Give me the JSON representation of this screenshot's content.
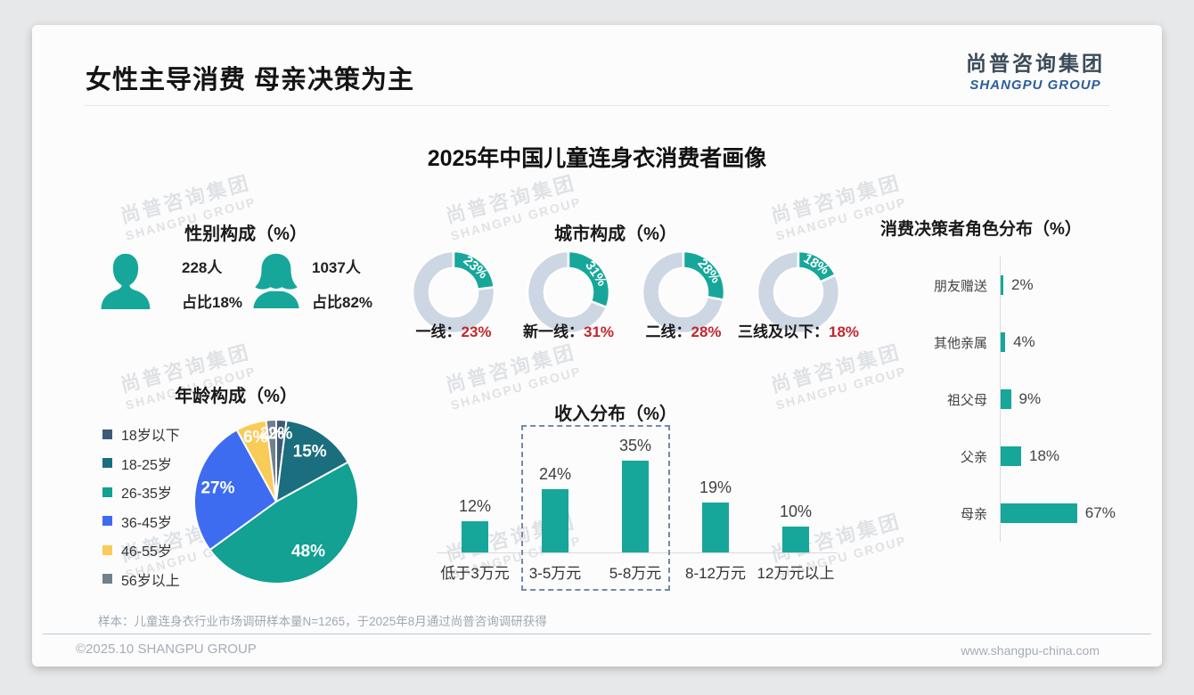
{
  "page": {
    "title": "女性主导消费 母亲决策为主",
    "logo": {
      "cn": "尚普咨询集团",
      "en": "SHANGPU GROUP"
    },
    "main_title": "2025年中国儿童连身衣消费者画像",
    "watermark": {
      "cn": "尚普咨询集团",
      "en": "SHANGPU GROUP"
    },
    "footer": {
      "sample_note": "样本：儿童连身衣行业市场调研样本量N=1265，于2025年8月通过尚普咨询调研获得",
      "copyright": "©2025.10 SHANGPU GROUP",
      "website": "www.shangpu-china.com"
    },
    "colors": {
      "teal": "#16A79A",
      "donut_rest": "#CDD7E4",
      "percent_red": "#C2272D",
      "logo_blue": "#2D5E99",
      "logo_dark": "#3B4B59"
    }
  },
  "chart_data": [
    {
      "type": "pictogram",
      "title": "性别构成（%）",
      "items": [
        {
          "icon": "male-icon",
          "count": "228人",
          "share": "占比18%"
        },
        {
          "icon": "female-icon",
          "count": "1037人",
          "share": "占比82%"
        }
      ]
    },
    {
      "type": "donut",
      "title": "城市构成（%）",
      "unit": "%",
      "items": [
        {
          "label": "一线",
          "value": 23
        },
        {
          "label": "新一线",
          "value": 31
        },
        {
          "label": "二线",
          "value": 28
        },
        {
          "label": "三线及以下",
          "value": 18
        }
      ],
      "colors": {
        "segment": "#16A79A",
        "rest": "#CDD7E4"
      }
    },
    {
      "type": "bar-horizontal",
      "title": "消费决策者角色分布（%）",
      "unit": "%",
      "categories": [
        "朋友赠送",
        "其他亲属",
        "祖父母",
        "父亲",
        "母亲"
      ],
      "values": [
        2,
        4,
        9,
        18,
        67
      ],
      "bar_color": "#16A79A",
      "xlim": [
        0,
        70
      ],
      "grid": false
    },
    {
      "type": "pie",
      "title": "年龄构成（%）",
      "unit": "%",
      "categories": [
        "18岁以下",
        "18-25岁",
        "26-35岁",
        "36-45岁",
        "46-55岁",
        "56岁以上"
      ],
      "values": [
        2,
        15,
        48,
        27,
        6,
        2
      ],
      "colors": [
        "#3E5A78",
        "#1A6E7E",
        "#12A192",
        "#3D6CF0",
        "#F9CB57",
        "#70808C"
      ],
      "legend_position": "left",
      "labels_inside": true
    },
    {
      "type": "bar",
      "title": "收入分布（%）",
      "unit": "%",
      "categories": [
        "低于3万元",
        "3-5万元",
        "5-8万元",
        "8-12万元",
        "12万元以上"
      ],
      "values": [
        12,
        24,
        35,
        19,
        10
      ],
      "bar_color": "#16A79A",
      "ylim": [
        0,
        40
      ],
      "grid": false,
      "highlight": {
        "indices": [
          1,
          2
        ],
        "style": "dashed-box"
      }
    }
  ]
}
